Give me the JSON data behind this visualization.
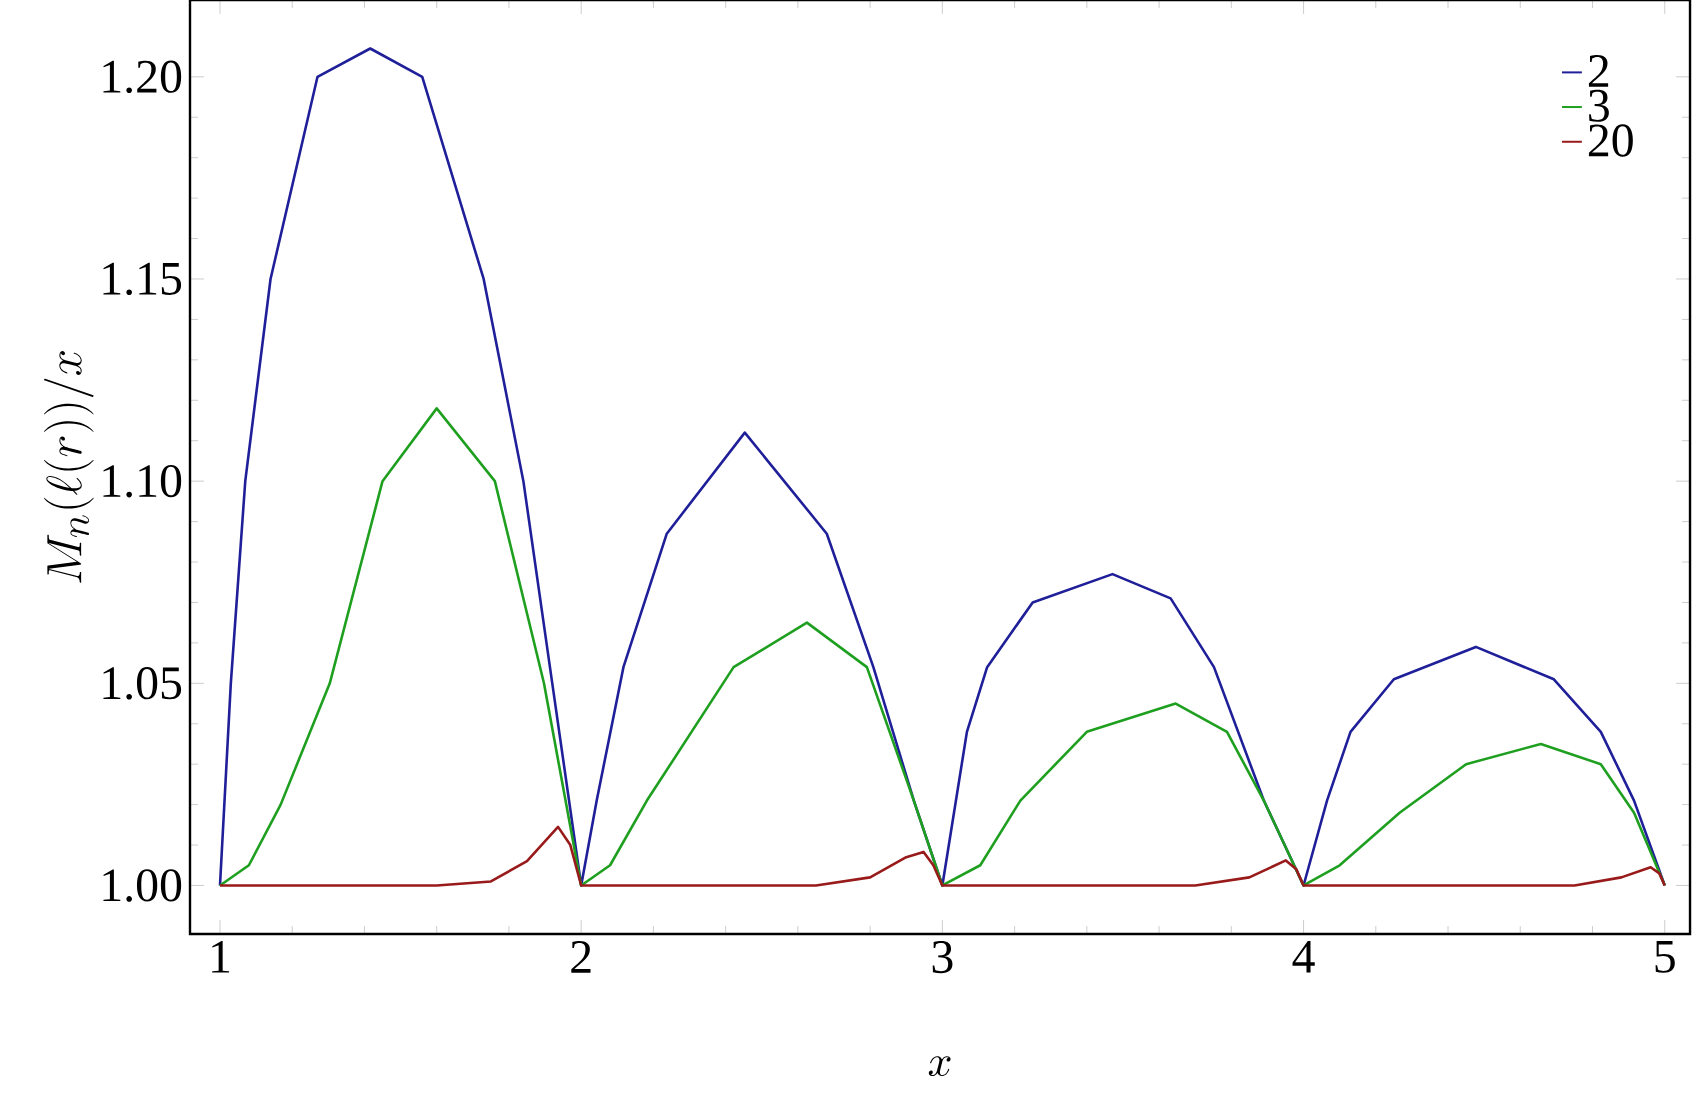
{
  "chart_data": {
    "type": "line",
    "xlabel": "x",
    "ylabel": "M_n(\\ell(r))/x",
    "xlim": [
      0.917,
      5.07
    ],
    "ylim": [
      0.988,
      1.219
    ],
    "xticks": [
      1,
      2,
      3,
      4,
      5
    ],
    "yticks": [
      {
        "value": 1.0,
        "label": "1.00"
      },
      {
        "value": 1.05,
        "label": "1.05"
      },
      {
        "value": 1.1,
        "label": "1.10"
      },
      {
        "value": 1.15,
        "label": "1.15"
      },
      {
        "value": 1.2,
        "label": "1.20"
      }
    ],
    "legend": "top right",
    "series": [
      {
        "name": "2",
        "color": "#1f1f99",
        "x": [
          1,
          1.03,
          1.07,
          1.14,
          1.27,
          1.416,
          1.56,
          1.73,
          1.84,
          1.92,
          2,
          2.043,
          2.117,
          2.237,
          2.453,
          2.68,
          2.809,
          2.921,
          3,
          3.068,
          3.124,
          3.25,
          3.471,
          3.632,
          3.752,
          3.89,
          4,
          4.065,
          4.13,
          4.25,
          4.477,
          4.693,
          4.823,
          4.915,
          5
        ],
        "values": [
          1.0,
          1.05,
          1.1,
          1.15,
          1.2,
          1.207,
          1.2,
          1.15,
          1.1,
          1.05,
          1.0,
          1.021,
          1.054,
          1.087,
          1.112,
          1.087,
          1.054,
          1.021,
          1.0,
          1.038,
          1.054,
          1.07,
          1.077,
          1.071,
          1.054,
          1.021,
          1.0,
          1.021,
          1.038,
          1.051,
          1.059,
          1.051,
          1.038,
          1.021,
          1.0
        ]
      },
      {
        "name": "3",
        "color": "#1f9f1f",
        "x": [
          1,
          1.08,
          1.168,
          1.304,
          1.45,
          1.6,
          1.761,
          1.897,
          2,
          2.08,
          2.182,
          2.422,
          2.625,
          2.791,
          2.921,
          3,
          3.105,
          3.216,
          3.4,
          3.646,
          3.788,
          3.89,
          4,
          4.1,
          4.266,
          4.45,
          4.657,
          4.823,
          4.915,
          5
        ],
        "values": [
          1.0,
          1.005,
          1.02,
          1.05,
          1.1,
          1.118,
          1.1,
          1.05,
          1.0,
          1.005,
          1.021,
          1.054,
          1.065,
          1.054,
          1.021,
          1.0,
          1.005,
          1.021,
          1.038,
          1.045,
          1.038,
          1.021,
          1.0,
          1.005,
          1.018,
          1.03,
          1.035,
          1.03,
          1.018,
          1.0
        ]
      },
      {
        "name": "20",
        "color": "#991a1a",
        "x": [
          1,
          1.6,
          1.75,
          1.85,
          1.936,
          1.97,
          2,
          2.65,
          2.8,
          2.9,
          2.948,
          2.975,
          3,
          3.7,
          3.85,
          3.951,
          3.98,
          4,
          4.75,
          4.88,
          4.961,
          4.985,
          5
        ],
        "values": [
          1.0,
          1.0,
          1.001,
          1.006,
          1.0145,
          1.01,
          1.0,
          1.0,
          1.002,
          1.007,
          1.0083,
          1.005,
          1.0,
          1.0,
          1.002,
          1.0062,
          1.004,
          1.0,
          1.0,
          1.002,
          1.0045,
          1.003,
          1.0
        ]
      }
    ]
  }
}
